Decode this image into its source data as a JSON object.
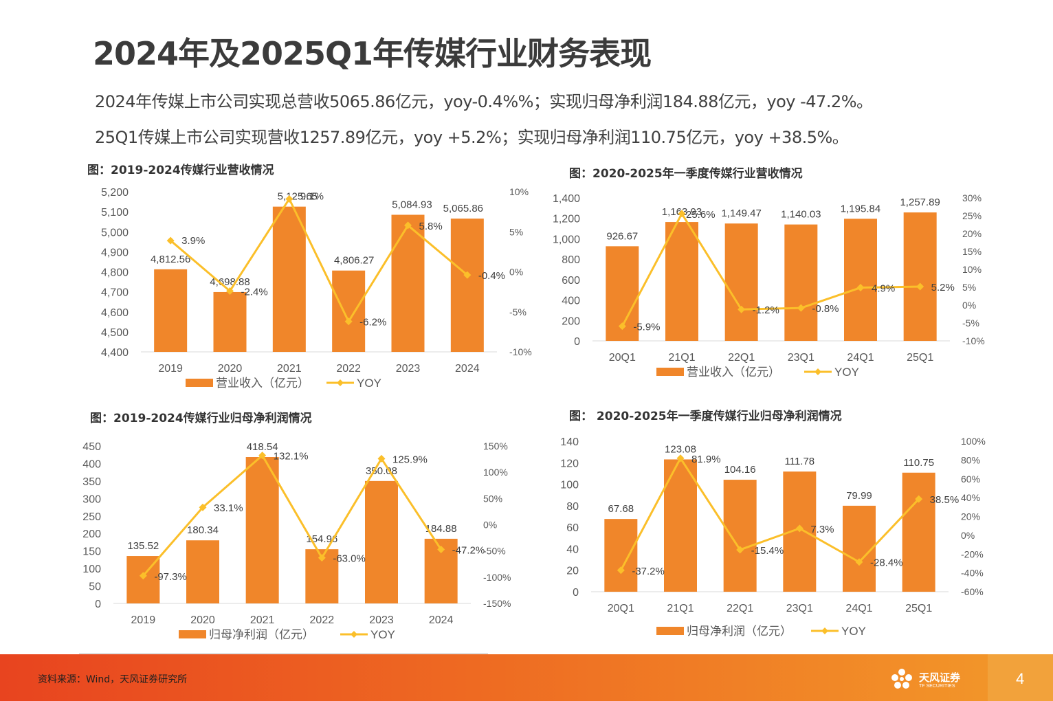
{
  "page": {
    "title": "2024年及2025Q1年传媒行业财务表现",
    "summary_line1": "2024年传媒上市公司实现总营收5065.86亿元，yoy-0.4%%；实现归母净利润184.88亿元，yoy -47.2%。",
    "summary_line2": "25Q1传媒上市公司实现营收1257.89亿元，yoy +5.2%；实现归母净利润110.75亿元，yoy +38.5%。",
    "source": "资料来源：Wind，天风证券研究所",
    "logo_text": "天风证券",
    "logo_sub": "TF SECURITIES",
    "page_number": "4"
  },
  "colors": {
    "bar": "#f0862a",
    "line": "#fbbf2a",
    "axis_text": "#595959",
    "footer": "#e8441f"
  },
  "chart_data": [
    {
      "id": "c1",
      "type": "bar",
      "title": "图：2019-2024传媒行业营收情况",
      "categories": [
        "2019",
        "2020",
        "2021",
        "2022",
        "2023",
        "2024"
      ],
      "series": [
        {
          "name": "营业收入（亿元）",
          "type": "bar",
          "axis": "left",
          "values": [
            4812.56,
            4698.88,
            5125.65,
            4806.27,
            5084.93,
            5065.86
          ],
          "labels": [
            "4,812.56",
            "4,698.88",
            "5,125.65",
            "4,806.27",
            "5,084.93",
            "5,065.86"
          ]
        },
        {
          "name": "YOY",
          "type": "line",
          "axis": "right",
          "values": [
            3.9,
            -2.4,
            9.1,
            -6.2,
            5.8,
            -0.4
          ],
          "labels": [
            "3.9%",
            "-2.4%",
            "9.1%",
            "-6.2%",
            "5.8%",
            "-0.4%"
          ]
        }
      ],
      "left_axis": {
        "min": 4400,
        "max": 5200,
        "step": 100,
        "ticks": [
          "4,400",
          "4,500",
          "4,600",
          "4,700",
          "4,800",
          "4,900",
          "5,000",
          "5,100",
          "5,200"
        ]
      },
      "right_axis": {
        "min": -10,
        "max": 10,
        "step": 5,
        "ticks": [
          "-10%",
          "-5%",
          "0%",
          "5%",
          "10%"
        ]
      },
      "legend": "bottom"
    },
    {
      "id": "c2",
      "type": "bar",
      "title": "图：2020-2025年一季度传媒行业营收情况",
      "categories": [
        "20Q1",
        "21Q1",
        "22Q1",
        "23Q1",
        "24Q1",
        "25Q1"
      ],
      "series": [
        {
          "name": "营业收入（亿元）",
          "type": "bar",
          "axis": "left",
          "values": [
            926.67,
            1163.93,
            1149.47,
            1140.03,
            1195.84,
            1257.89
          ],
          "labels": [
            "926.67",
            "1,163.93",
            "1,149.47",
            "1,140.03",
            "1,195.84",
            "1,257.89"
          ]
        },
        {
          "name": "YOY",
          "type": "line",
          "axis": "right",
          "values": [
            -5.9,
            25.6,
            -1.2,
            -0.8,
            4.9,
            5.2
          ],
          "labels": [
            "-5.9%",
            "25.6%",
            "-1.2%",
            "-0.8%",
            "4.9%",
            "5.2%"
          ]
        }
      ],
      "left_axis": {
        "min": 0,
        "max": 1400,
        "step": 200,
        "ticks": [
          "0",
          "200",
          "400",
          "600",
          "800",
          "1,000",
          "1,200",
          "1,400"
        ]
      },
      "right_axis": {
        "min": -10,
        "max": 30,
        "step": 5,
        "ticks": [
          "-10%",
          "-5%",
          "0%",
          "5%",
          "10%",
          "15%",
          "20%",
          "25%",
          "30%"
        ]
      },
      "legend": "bottom"
    },
    {
      "id": "c3",
      "type": "bar",
      "title": "图：2019-2024传媒行业归母净利润情况",
      "categories": [
        "2019",
        "2020",
        "2021",
        "2022",
        "2023",
        "2024"
      ],
      "series": [
        {
          "name": "归母净利润（亿元）",
          "type": "bar",
          "axis": "left",
          "values": [
            135.52,
            180.34,
            418.54,
            154.96,
            350.08,
            184.88
          ],
          "labels": [
            "135.52",
            "180.34",
            "418.54",
            "154.96",
            "350.08",
            "184.88"
          ]
        },
        {
          "name": "YOY",
          "type": "line",
          "axis": "right",
          "values": [
            -97.3,
            33.1,
            132.1,
            -63.0,
            125.9,
            -47.2
          ],
          "labels": [
            "-97.3%",
            "33.1%",
            "132.1%",
            "-63.0%",
            "125.9%",
            "-47.2%"
          ]
        }
      ],
      "left_axis": {
        "min": 0,
        "max": 450,
        "step": 50,
        "ticks": [
          "0",
          "50",
          "100",
          "150",
          "200",
          "250",
          "300",
          "350",
          "400",
          "450"
        ]
      },
      "right_axis": {
        "min": -150,
        "max": 150,
        "step": 50,
        "ticks": [
          "-150%",
          "-100%",
          "-50%",
          "0%",
          "50%",
          "100%",
          "150%"
        ]
      },
      "legend": "bottom"
    },
    {
      "id": "c4",
      "type": "bar",
      "title": "图： 2020-2025年一季度传媒行业归母净利润情况",
      "categories": [
        "20Q1",
        "21Q1",
        "22Q1",
        "23Q1",
        "24Q1",
        "25Q1"
      ],
      "series": [
        {
          "name": "归母净利润（亿元）",
          "type": "bar",
          "axis": "left",
          "values": [
            67.68,
            123.08,
            104.16,
            111.78,
            79.99,
            110.75
          ],
          "labels": [
            "67.68",
            "123.08",
            "104.16",
            "111.78",
            "79.99",
            "110.75"
          ]
        },
        {
          "name": "YOY",
          "type": "line",
          "axis": "right",
          "values": [
            -37.2,
            81.9,
            -15.4,
            7.3,
            -28.4,
            38.5
          ],
          "labels": [
            "-37.2%",
            "81.9%",
            "-15.4%",
            "7.3%",
            "-28.4%",
            "38.5%"
          ]
        }
      ],
      "left_axis": {
        "min": 0,
        "max": 140,
        "step": 20,
        "ticks": [
          "0",
          "20",
          "40",
          "60",
          "80",
          "100",
          "120",
          "140"
        ]
      },
      "right_axis": {
        "min": -60,
        "max": 100,
        "step": 20,
        "ticks": [
          "-60%",
          "-40%",
          "-20%",
          "0%",
          "20%",
          "40%",
          "60%",
          "80%",
          "100%"
        ]
      },
      "legend": "bottom"
    }
  ]
}
